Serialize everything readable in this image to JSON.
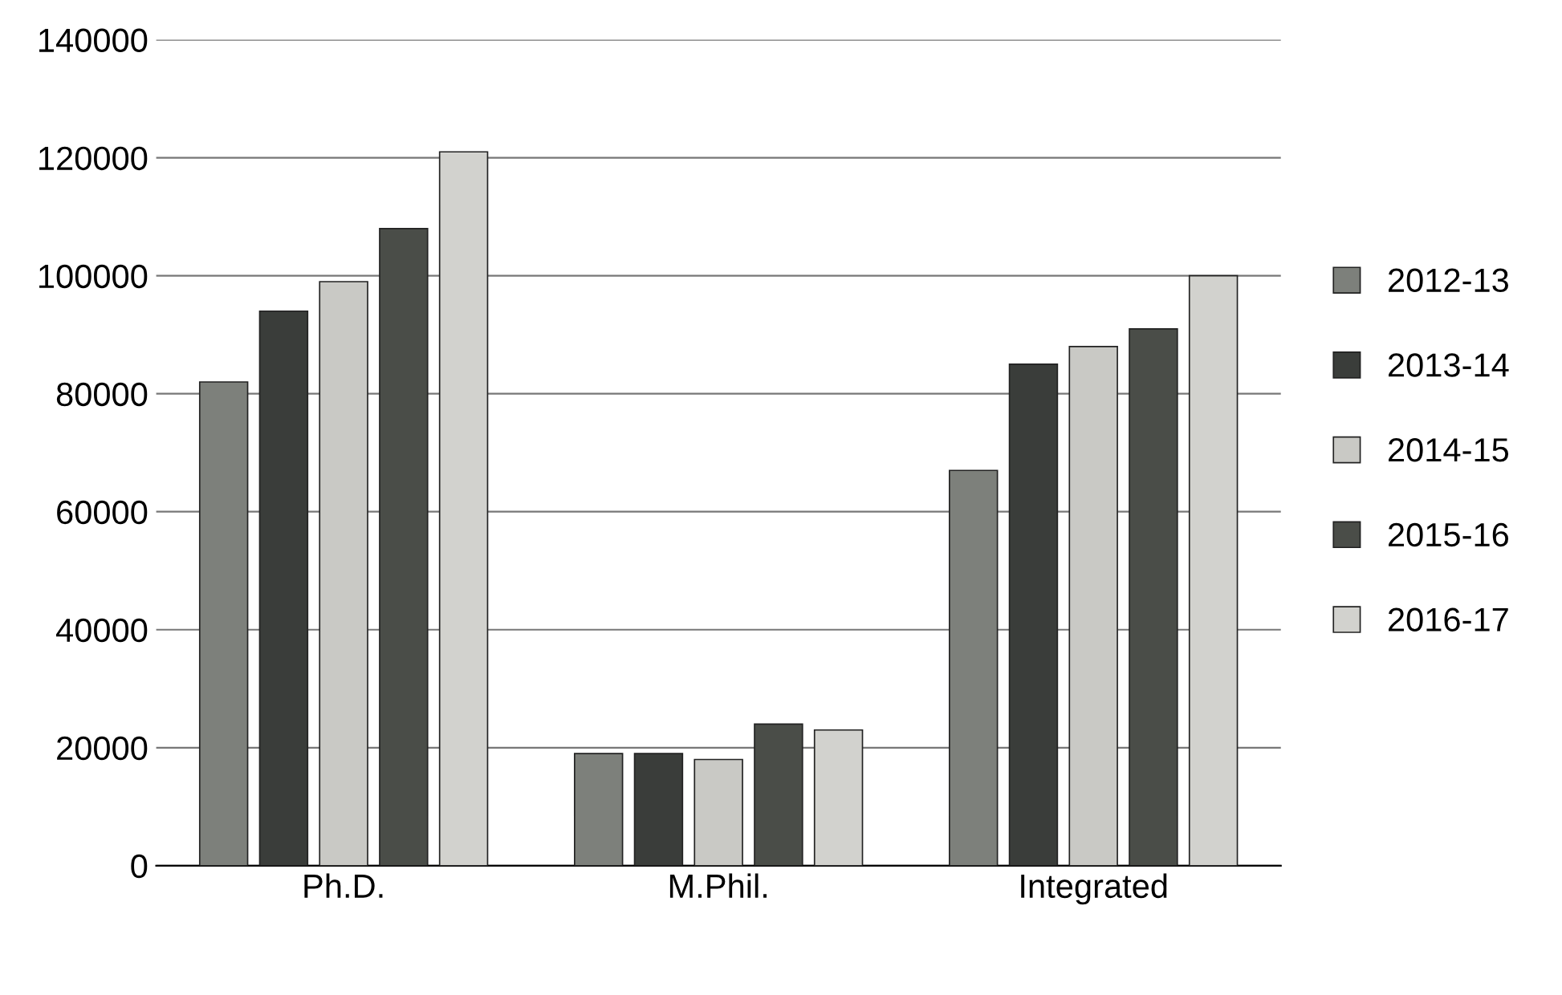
{
  "chart_data": {
    "type": "bar",
    "categories": [
      "Ph.D.",
      "M.Phil.",
      "Integrated"
    ],
    "series": [
      {
        "name": "2012-13",
        "color": "#7d807b",
        "values": [
          82000,
          19000,
          67000
        ]
      },
      {
        "name": "2013-14",
        "color": "#3a3d3a",
        "values": [
          94000,
          19000,
          85000
        ]
      },
      {
        "name": "2014-15",
        "color": "#c9c9c5",
        "values": [
          99000,
          18000,
          88000
        ]
      },
      {
        "name": "2015-16",
        "color": "#4a4d48",
        "values": [
          108000,
          24000,
          91000
        ]
      },
      {
        "name": "2016-17",
        "color": "#d2d2ce",
        "values": [
          121000,
          23000,
          100000
        ]
      }
    ],
    "ylim": [
      0,
      140000
    ],
    "yticks": [
      0,
      20000,
      40000,
      60000,
      80000,
      100000,
      120000,
      140000
    ],
    "grid": "y",
    "legend": "right"
  }
}
